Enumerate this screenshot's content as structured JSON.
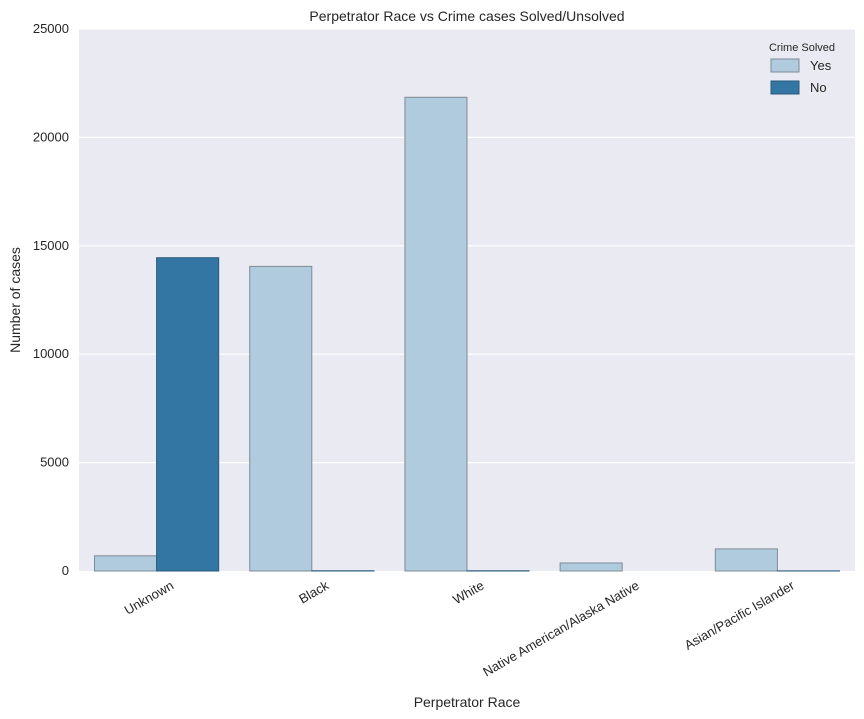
{
  "chart_data": {
    "type": "bar",
    "title": "Perpetrator Race vs Crime cases Solved/Unsolved",
    "xlabel": "Perpetrator Race",
    "ylabel": "Number of cases",
    "categories": [
      "Unknown",
      "Black",
      "White",
      "Native American/Alaska Native",
      "Asian/Pacific Islander"
    ],
    "series": [
      {
        "name": "Yes",
        "color": "#afcbdd",
        "values": [
          700,
          14050,
          21850,
          370,
          1020
        ]
      },
      {
        "name": "No",
        "color": "#3375a3",
        "values": [
          14450,
          10,
          10,
          0,
          5
        ]
      }
    ],
    "ylim": [
      0,
      25000
    ],
    "yticks": [
      0,
      5000,
      10000,
      15000,
      20000,
      25000
    ],
    "ytick_labels": [
      "0",
      "5000",
      "10000",
      "15000",
      "20000",
      "25000"
    ],
    "grid": true,
    "legend": {
      "title": "Crime Solved",
      "position": "top-right"
    }
  }
}
